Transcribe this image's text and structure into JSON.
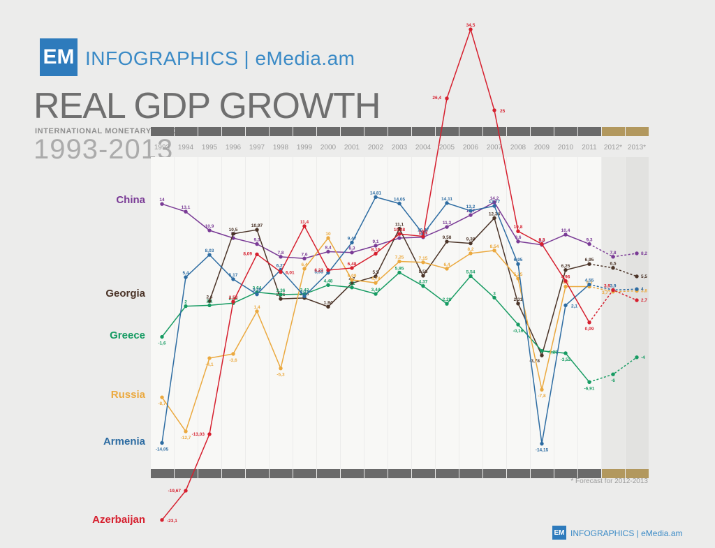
{
  "header": {
    "logo": "EM",
    "brand": "INFOGRAPHICS | eMedia.am",
    "title": "REAL GDP GROWTH",
    "source": "INTERNATIONAL MONETARY FUND",
    "period": "1993-2013"
  },
  "footer": {
    "note": "* Forecast for 2012-2013",
    "logo": "EM",
    "brand": "INFOGRAPHICS | eMedia.am"
  },
  "colors": {
    "brand_blue": "#2e7bbc",
    "bar_dark": "#6a6a6a",
    "bar_gold": "#b2985e",
    "column_light": "#f8f8f6",
    "column_forecast_1": "#e8e8e6",
    "column_forecast_2": "#e2e2e0"
  },
  "chart_data": {
    "type": "line",
    "title": "REAL GDP GROWTH",
    "subtitle": "INTERNATIONAL MONETARY FUND 1993-2013",
    "grid": false,
    "legend_position": "left",
    "ylim": [
      -24,
      35
    ],
    "forecast_note": "* Forecast for 2012-2013",
    "forecast_start_index": 18,
    "categories": [
      "1993",
      "1994",
      "1995",
      "1996",
      "1997",
      "1998",
      "1999",
      "2000",
      "2001",
      "2002",
      "2003",
      "2004",
      "2005",
      "2006",
      "2007",
      "2008",
      "2009",
      "2010",
      "2011",
      "2012*",
      "2013*"
    ],
    "series": [
      {
        "name": "China",
        "color": "#7a3b96",
        "values": [
          14,
          13.1,
          10.9,
          10,
          9.3,
          7.8,
          7.6,
          8.4,
          8.3,
          9.1,
          10,
          10.1,
          11.3,
          12.7,
          14.2,
          9.6,
          9.2,
          10.4,
          9.3,
          7.8,
          8.2
        ],
        "labels": [
          "14",
          "13,1",
          "10,9",
          "10",
          "9,3",
          "7,8",
          "7,6",
          "8,4",
          "8,3",
          "9,1",
          "10",
          "10,1",
          "11,3",
          "12,7",
          "14,2",
          "9,6",
          "9,2",
          "10,4",
          "9,3",
          "7,8",
          "8,2"
        ]
      },
      {
        "name": "Georgia",
        "color": "#4b3428",
        "values": [
          null,
          null,
          2.6,
          10.5,
          10.97,
          2.86,
          2.96,
          1.94,
          4.7,
          5.5,
          11.1,
          5.58,
          9.58,
          9.38,
          12.34,
          2.31,
          -3.78,
          6.25,
          6.95,
          6.5,
          5.5
        ],
        "labels": [
          null,
          null,
          "2,6",
          "10,5",
          "10,97",
          "2,86",
          "2,96",
          "1,94",
          "4,7",
          "5,5",
          "11,1",
          "5,58",
          "9,58",
          "9,38",
          "12,34",
          "2,31",
          "-3,78",
          "6,25",
          "6,95",
          "6,5",
          "5,5"
        ]
      },
      {
        "name": "Greece",
        "color": "#169b62",
        "values": [
          -1.6,
          2,
          2.1,
          2.36,
          3.64,
          3.36,
          3.42,
          4.48,
          4.2,
          3.44,
          5.95,
          4.37,
          2.28,
          5.54,
          3,
          -0.16,
          -3.25,
          -3.52,
          -6.91,
          -6,
          -4
        ],
        "labels": [
          "-1,6",
          "2",
          "2,1",
          "2,36",
          "3,64",
          "3,36",
          "3,42",
          "4,48",
          "4,2",
          "3,44",
          "5,95",
          "4,37",
          "2,28",
          "5,54",
          "3",
          "-0,16",
          "-3,25",
          "-3,52",
          "-6,91",
          "-6",
          "-4"
        ]
      },
      {
        "name": "Russia",
        "color": "#eba93f",
        "values": [
          -8.7,
          -12.7,
          -4.1,
          -3.6,
          1.4,
          -5.3,
          6.4,
          10,
          5.09,
          4.74,
          7.25,
          7.15,
          6.4,
          8.2,
          8.54,
          5.25,
          -7.8,
          4.3,
          4.3,
          3.7,
          3.8
        ],
        "labels": [
          "-8,7",
          "-12,7",
          "-4,1",
          "-3,6",
          "1,4",
          "-5,3",
          "6,4",
          "10",
          "5,09",
          "4,74",
          "7,25",
          "7,15",
          "6,4",
          "8,2",
          "8,54",
          "5,25",
          "-7,8",
          "4,3",
          "4,3",
          "3,7",
          "3,8"
        ]
      },
      {
        "name": "Armenia",
        "color": "#2d6ca2",
        "values": [
          -14.05,
          5.4,
          8.03,
          5.17,
          3.39,
          6.27,
          3.17,
          5.93,
          9.47,
          14.81,
          14.05,
          10.47,
          14.11,
          13.2,
          13.77,
          6.95,
          -14.15,
          2.1,
          4.55,
          3.9,
          4
        ],
        "labels": [
          "-14,05",
          "5,4",
          "8,03",
          "5,17",
          "3,39",
          "6,27",
          "3,17",
          "5,93",
          "9,47",
          "14,81",
          "14,05",
          "10,47",
          "14,11",
          "13,2",
          "13,77",
          "6,95",
          "-14,15",
          "2,1",
          "4,55",
          "3,9",
          "4"
        ]
      },
      {
        "name": "Azerbaijan",
        "color": "#d61f2e",
        "values": [
          -23.1,
          -19.67,
          -13.03,
          2.53,
          8.09,
          6.01,
          11.4,
          6.23,
          6.48,
          8.16,
          10.48,
          10.2,
          26.4,
          34.5,
          25,
          10.8,
          9.3,
          4.96,
          0.09,
          3.9,
          2.7
        ],
        "labels": [
          "-23,1",
          "-19,67",
          "-13,03",
          "2,53",
          "8,09",
          "6,01",
          "11,4",
          "6,23",
          "6,48",
          "8,16",
          "10,48",
          "10,2",
          "26,4",
          "34,5",
          "25",
          "10,8",
          "9,3",
          "4,96",
          "0,09",
          "3,9",
          "2,7"
        ]
      }
    ]
  }
}
